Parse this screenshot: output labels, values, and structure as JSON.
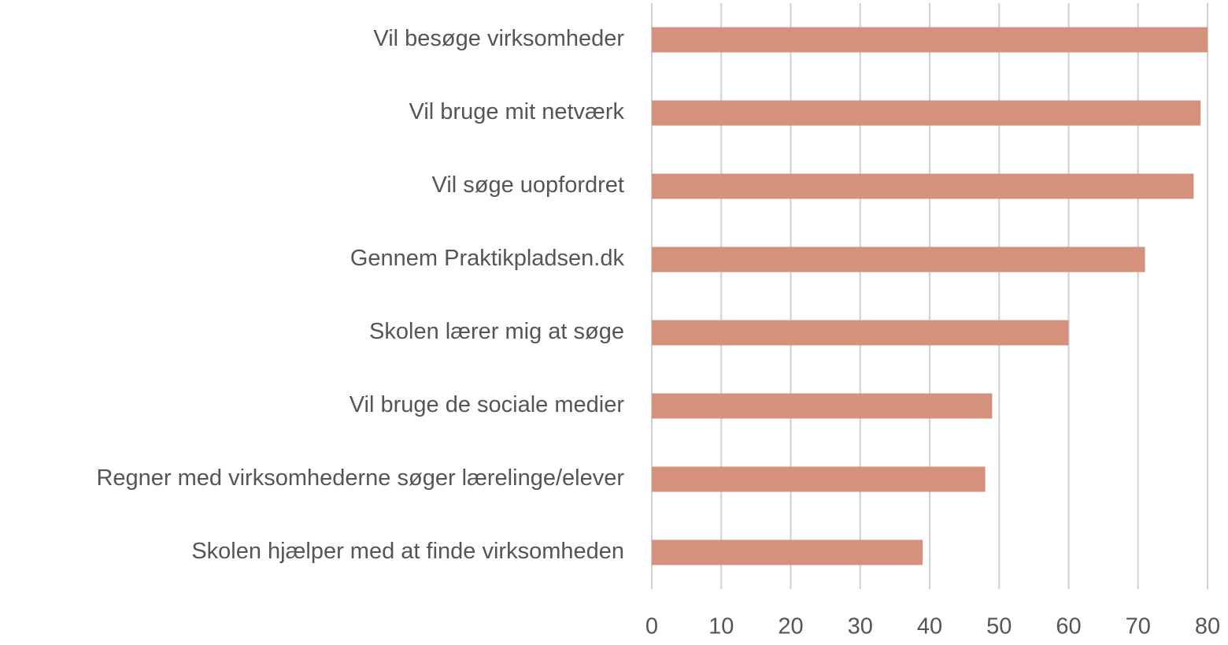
{
  "chart_data": {
    "type": "bar",
    "orientation": "horizontal",
    "categories": [
      "Vil besøge virksomheder",
      "Vil bruge mit netværk",
      "Vil søge uopfordret",
      "Gennem Praktikpladsen.dk",
      "Skolen lærer mig at søge",
      "Vil bruge de sociale medier",
      "Regner med virksomhederne søger lærelinge/elever",
      "Skolen hjælper med at finde virksomheden"
    ],
    "values": [
      80,
      79,
      78,
      71,
      60,
      49,
      48,
      39
    ],
    "color": "#d4917b",
    "xlim": [
      0,
      80
    ],
    "xticks": [
      0,
      10,
      20,
      30,
      40,
      50,
      60,
      70,
      80
    ],
    "grid": true
  }
}
